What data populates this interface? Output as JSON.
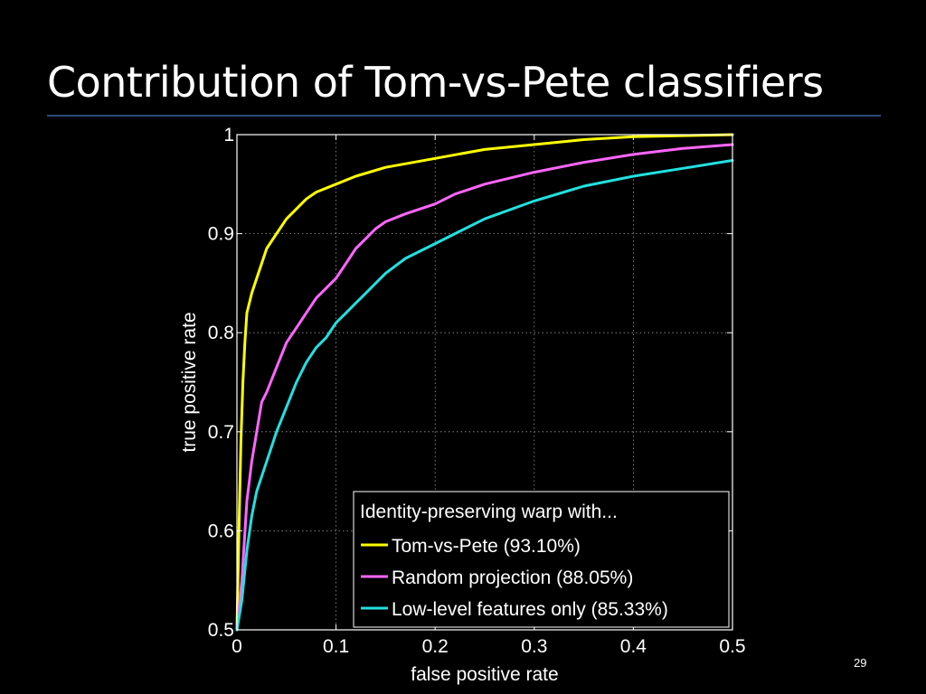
{
  "slide": {
    "title": "Contribution of Tom-vs-Pete classifiers",
    "number": "29",
    "rule_color": "#2e4a7a"
  },
  "chart_data": {
    "type": "line",
    "title": "",
    "xlabel": "false positive rate",
    "ylabel": "true positive rate",
    "xlim": [
      0,
      0.5
    ],
    "ylim": [
      0.5,
      1
    ],
    "xticks": [
      0,
      0.1,
      0.2,
      0.3,
      0.4,
      0.5
    ],
    "xtick_labels": [
      "0",
      "0.1",
      "0.2",
      "0.3",
      "0.4",
      "0.5"
    ],
    "yticks": [
      0.5,
      0.6,
      0.7,
      0.8,
      0.9,
      1
    ],
    "ytick_labels": [
      "0.5",
      "0.6",
      "0.7",
      "0.8",
      "0.9",
      "1"
    ],
    "grid": true,
    "legend": {
      "title": "Identity-preserving warp with...",
      "placement": "bottom-right"
    },
    "series": [
      {
        "name": "Tom-vs-Pete (93.10%)",
        "color": "#ffff00",
        "x": [
          0,
          0.002,
          0.004,
          0.006,
          0.008,
          0.01,
          0.015,
          0.02,
          0.025,
          0.03,
          0.04,
          0.05,
          0.06,
          0.07,
          0.08,
          0.1,
          0.12,
          0.15,
          0.2,
          0.25,
          0.3,
          0.35,
          0.4,
          0.45,
          0.5
        ],
        "y": [
          0.5,
          0.6,
          0.69,
          0.75,
          0.79,
          0.82,
          0.84,
          0.855,
          0.87,
          0.885,
          0.9,
          0.915,
          0.925,
          0.935,
          0.942,
          0.95,
          0.958,
          0.967,
          0.976,
          0.985,
          0.99,
          0.995,
          0.998,
          0.999,
          1.0
        ]
      },
      {
        "name": "Random projection (88.05%)",
        "color": "#ff66ff",
        "x": [
          0,
          0.005,
          0.01,
          0.015,
          0.02,
          0.025,
          0.03,
          0.04,
          0.05,
          0.06,
          0.07,
          0.08,
          0.09,
          0.1,
          0.11,
          0.12,
          0.13,
          0.14,
          0.15,
          0.17,
          0.2,
          0.22,
          0.25,
          0.3,
          0.35,
          0.4,
          0.45,
          0.5
        ],
        "y": [
          0.5,
          0.55,
          0.63,
          0.67,
          0.7,
          0.73,
          0.74,
          0.765,
          0.79,
          0.805,
          0.82,
          0.835,
          0.845,
          0.855,
          0.87,
          0.885,
          0.895,
          0.905,
          0.912,
          0.92,
          0.93,
          0.94,
          0.95,
          0.962,
          0.972,
          0.98,
          0.986,
          0.99
        ]
      },
      {
        "name": "Low-level features only (85.33%)",
        "color": "#22e0e0",
        "x": [
          0,
          0.005,
          0.01,
          0.015,
          0.02,
          0.03,
          0.04,
          0.05,
          0.06,
          0.07,
          0.08,
          0.09,
          0.1,
          0.11,
          0.12,
          0.13,
          0.14,
          0.15,
          0.17,
          0.2,
          0.22,
          0.25,
          0.3,
          0.35,
          0.4,
          0.45,
          0.5
        ],
        "y": [
          0.5,
          0.53,
          0.58,
          0.615,
          0.64,
          0.67,
          0.7,
          0.725,
          0.75,
          0.77,
          0.785,
          0.795,
          0.81,
          0.82,
          0.83,
          0.84,
          0.85,
          0.86,
          0.875,
          0.89,
          0.9,
          0.915,
          0.933,
          0.948,
          0.958,
          0.966,
          0.974
        ]
      }
    ]
  }
}
